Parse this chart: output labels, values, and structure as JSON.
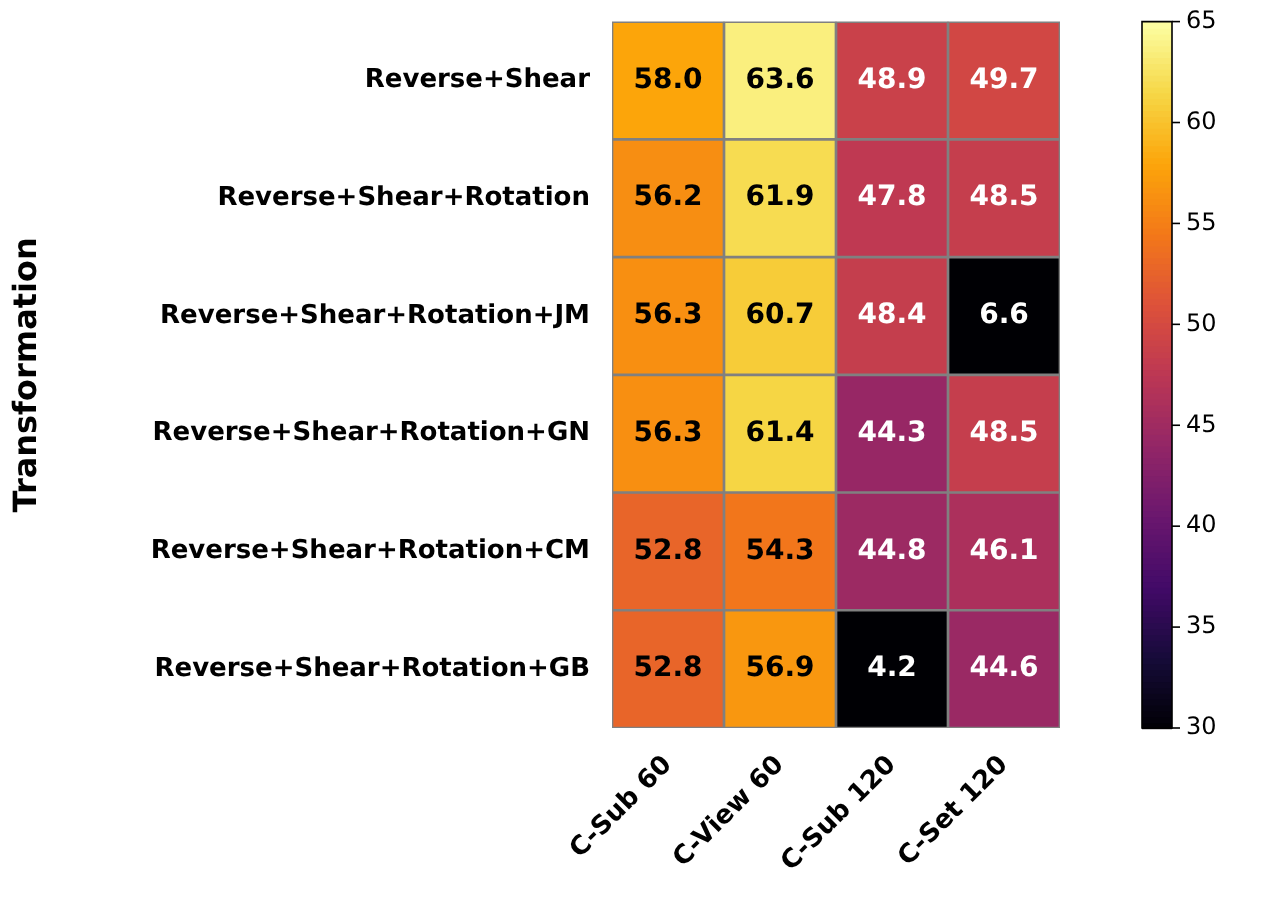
{
  "chart_data": {
    "type": "heatmap",
    "ylabel": "Transformation",
    "categories": [
      "C-Sub 60",
      "C-View 60",
      "C-Sub 120",
      "C-Set 120"
    ],
    "y_categories": [
      "Reverse+Shear",
      "Reverse+Shear+Rotation",
      "Reverse+Shear+Rotation+JM",
      "Reverse+Shear+Rotation+GN",
      "Reverse+Shear+Rotation+CM",
      "Reverse+Shear+Rotation+GB"
    ],
    "cells": [
      [
        58.0,
        63.6,
        48.9,
        49.7
      ],
      [
        56.2,
        61.9,
        47.8,
        48.5
      ],
      [
        56.3,
        60.7,
        48.4,
        6.6
      ],
      [
        56.3,
        61.4,
        44.3,
        48.5
      ],
      [
        52.8,
        54.3,
        44.8,
        46.1
      ],
      [
        52.8,
        56.9,
        4.2,
        44.6
      ]
    ],
    "cell_labels": [
      [
        "58.0",
        "63.6",
        "48.9",
        "49.7"
      ],
      [
        "56.2",
        "61.9",
        "47.8",
        "48.5"
      ],
      [
        "56.3",
        "60.7",
        "48.4",
        "6.6"
      ],
      [
        "56.3",
        "61.4",
        "44.3",
        "48.5"
      ],
      [
        "52.8",
        "54.3",
        "44.8",
        "46.1"
      ],
      [
        "52.8",
        "56.9",
        "4.2",
        "44.6"
      ]
    ],
    "clim": [
      30,
      65
    ],
    "cticks": [
      30,
      35,
      40,
      45,
      50,
      55,
      60,
      65
    ]
  }
}
